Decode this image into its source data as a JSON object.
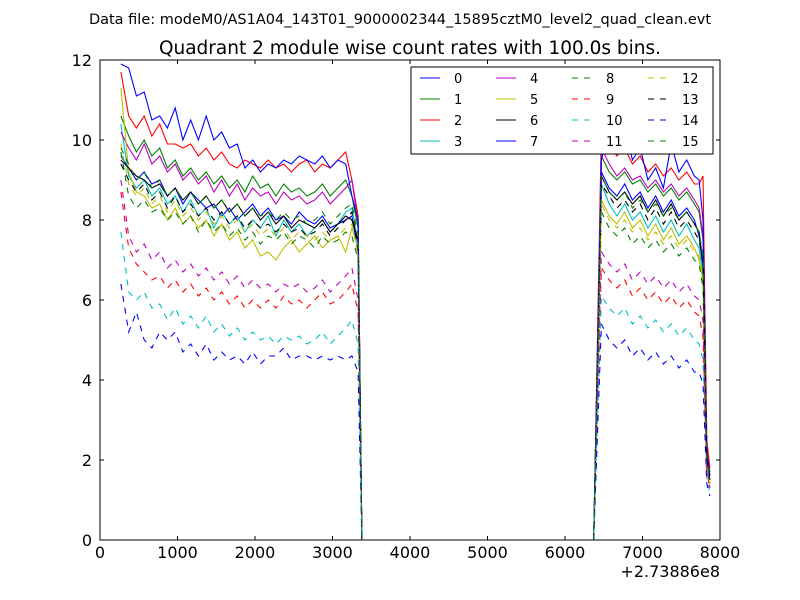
{
  "suptitle": "Data file: modeM0/AS1A04_143T01_9000002344_15895cztM0_level2_quad_clean.evt",
  "chart_data": {
    "type": "line",
    "title": "Quadrant 2 module wise count rates with 100.0s bins.",
    "xlabel": "",
    "ylabel": "",
    "x_offset_label": "+2.73886e8",
    "xlim": [
      0,
      8000
    ],
    "ylim": [
      0,
      12
    ],
    "x_ticks": [
      0,
      1000,
      2000,
      3000,
      4000,
      5000,
      6000,
      7000,
      8000
    ],
    "x_tick_labels": [
      "0",
      "1000",
      "2000",
      "3000",
      "4000",
      "5000",
      "6000",
      "7000",
      "8000"
    ],
    "y_ticks": [
      0,
      2,
      4,
      6,
      8,
      10,
      12
    ],
    "y_tick_labels": [
      "0",
      "2",
      "4",
      "6",
      "8",
      "10",
      "12"
    ],
    "grid": false,
    "legend_position": "upper-right",
    "legend_columns": 4,
    "x": [
      270,
      370,
      470,
      570,
      670,
      770,
      870,
      970,
      1070,
      1170,
      1270,
      1370,
      1470,
      1570,
      1670,
      1770,
      1870,
      1970,
      2070,
      2170,
      2270,
      2370,
      2470,
      2570,
      2670,
      2770,
      2870,
      2970,
      3070,
      3170,
      3250,
      3330,
      3380,
      6370,
      6470,
      6570,
      6670,
      6770,
      6870,
      6970,
      7070,
      7170,
      7270,
      7370,
      7470,
      7570,
      7670,
      7730,
      7780,
      7830,
      7870
    ],
    "series": [
      {
        "name": "0",
        "color": "#0000ff",
        "dash": "solid",
        "values": [
          9.6,
          9.3,
          9.0,
          9.2,
          8.9,
          9.0,
          8.6,
          8.8,
          8.4,
          8.7,
          8.5,
          8.3,
          8.4,
          8.1,
          8.3,
          8.0,
          8.2,
          8.4,
          8.1,
          8.3,
          8.0,
          8.1,
          7.9,
          8.2,
          8.0,
          7.9,
          8.1,
          7.8,
          7.9,
          8.0,
          8.1,
          7.2,
          0.0,
          0.0,
          9.2,
          8.8,
          8.6,
          8.9,
          8.5,
          8.7,
          8.3,
          8.6,
          8.2,
          8.5,
          8.1,
          8.3,
          8.0,
          7.6,
          6.8,
          2.0,
          1.6
        ]
      },
      {
        "name": "1",
        "color": "#008000",
        "dash": "solid",
        "values": [
          10.6,
          10.1,
          9.7,
          10.0,
          9.6,
          9.8,
          9.3,
          9.5,
          9.1,
          9.3,
          9.0,
          9.2,
          8.9,
          9.1,
          8.8,
          9.0,
          8.7,
          9.1,
          8.8,
          8.9,
          8.6,
          8.9,
          8.7,
          8.8,
          8.6,
          8.7,
          8.9,
          8.6,
          8.8,
          9.0,
          8.6,
          7.8,
          0.0,
          0.0,
          9.6,
          9.2,
          9.0,
          9.2,
          8.9,
          9.0,
          8.7,
          8.9,
          8.6,
          8.8,
          8.5,
          8.7,
          8.4,
          8.2,
          7.5,
          2.3,
          1.7
        ]
      },
      {
        "name": "2",
        "color": "#ff0000",
        "dash": "solid",
        "values": [
          11.7,
          10.6,
          10.3,
          10.6,
          10.1,
          10.4,
          9.9,
          9.9,
          9.8,
          9.9,
          9.6,
          9.8,
          9.5,
          9.7,
          9.4,
          9.3,
          9.5,
          9.4,
          9.3,
          9.5,
          9.3,
          9.4,
          9.2,
          9.4,
          9.5,
          9.2,
          9.4,
          9.3,
          9.5,
          9.7,
          9.0,
          8.1,
          0.0,
          0.0,
          10.3,
          9.9,
          9.6,
          9.8,
          9.4,
          9.6,
          9.2,
          9.4,
          9.1,
          9.3,
          9.0,
          9.2,
          8.9,
          8.9,
          9.1,
          2.5,
          1.8
        ]
      },
      {
        "name": "3",
        "color": "#00bfbf",
        "dash": "solid",
        "values": [
          10.4,
          9.1,
          8.8,
          9.0,
          8.6,
          8.8,
          8.4,
          8.6,
          8.2,
          8.5,
          8.1,
          8.3,
          7.8,
          8.2,
          7.9,
          8.1,
          7.7,
          8.0,
          7.8,
          8.1,
          7.6,
          8.0,
          7.7,
          7.9,
          7.6,
          7.8,
          8.0,
          7.7,
          7.9,
          8.2,
          8.3,
          7.4,
          0.0,
          0.0,
          8.9,
          8.4,
          8.1,
          8.4,
          8.0,
          8.2,
          7.8,
          8.1,
          7.7,
          8.0,
          7.6,
          7.9,
          7.5,
          7.3,
          6.6,
          2.1,
          1.5
        ]
      },
      {
        "name": "4",
        "color": "#bf00bf",
        "dash": "solid",
        "values": [
          10.2,
          9.8,
          9.5,
          9.9,
          9.4,
          9.6,
          9.2,
          9.4,
          9.0,
          9.2,
          8.9,
          9.1,
          8.7,
          9.0,
          8.6,
          8.9,
          8.5,
          8.8,
          8.6,
          8.7,
          8.4,
          8.7,
          8.5,
          8.6,
          8.4,
          8.5,
          8.7,
          8.4,
          8.6,
          8.8,
          9.0,
          7.9,
          0.0,
          0.0,
          9.8,
          9.4,
          9.1,
          9.3,
          9.0,
          9.1,
          8.8,
          9.0,
          8.7,
          8.9,
          8.6,
          8.8,
          8.5,
          8.3,
          7.6,
          2.2,
          1.6
        ]
      },
      {
        "name": "5",
        "color": "#bfbf00",
        "dash": "solid",
        "values": [
          11.3,
          9.2,
          8.7,
          8.6,
          8.3,
          8.4,
          8.0,
          8.3,
          7.9,
          8.1,
          7.8,
          8.0,
          7.6,
          7.9,
          7.5,
          7.7,
          7.3,
          7.5,
          7.1,
          7.2,
          7.0,
          7.3,
          7.5,
          7.2,
          7.4,
          7.6,
          7.3,
          7.5,
          7.6,
          7.2,
          7.8,
          7.3,
          0.0,
          0.0,
          8.5,
          8.1,
          7.9,
          8.2,
          7.8,
          8.0,
          7.6,
          7.9,
          7.5,
          7.8,
          7.4,
          7.6,
          7.3,
          7.0,
          6.5,
          2.0,
          1.5
        ]
      },
      {
        "name": "6",
        "color": "#000000",
        "dash": "solid",
        "values": [
          9.5,
          9.3,
          9.1,
          9.0,
          8.8,
          8.9,
          8.6,
          8.8,
          8.5,
          8.7,
          8.4,
          8.6,
          8.3,
          8.5,
          8.2,
          8.4,
          8.1,
          8.3,
          8.0,
          8.2,
          7.9,
          8.1,
          7.8,
          8.0,
          7.9,
          7.8,
          8.0,
          7.7,
          7.9,
          8.1,
          8.0,
          7.5,
          0.0,
          0.0,
          9.1,
          8.7,
          8.5,
          8.7,
          8.4,
          8.6,
          8.2,
          8.5,
          8.1,
          8.4,
          8.0,
          8.2,
          7.9,
          7.7,
          6.9,
          2.0,
          1.5
        ]
      },
      {
        "name": "7",
        "color": "#0000ff",
        "dash": "solid",
        "values": [
          11.9,
          11.8,
          11.1,
          11.2,
          10.5,
          10.6,
          10.3,
          10.8,
          10.0,
          10.5,
          10.0,
          10.6,
          10.0,
          10.2,
          9.8,
          9.9,
          9.3,
          9.5,
          9.2,
          9.4,
          9.3,
          9.5,
          9.4,
          9.6,
          9.5,
          9.4,
          9.6,
          9.3,
          9.5,
          9.4,
          8.6,
          8.0,
          0.0,
          0.0,
          9.5,
          10.3,
          10.4,
          10.4,
          9.5,
          9.8,
          9.0,
          9.3,
          8.8,
          9.9,
          9.2,
          9.5,
          9.1,
          9.0,
          8.0,
          2.2,
          1.6
        ]
      },
      {
        "name": "8",
        "color": "#008000",
        "dash": "dashed",
        "values": [
          9.7,
          8.6,
          8.3,
          8.5,
          8.2,
          8.3,
          8.0,
          8.2,
          7.9,
          8.1,
          7.7,
          8.0,
          7.7,
          7.9,
          7.6,
          7.8,
          7.5,
          7.7,
          7.4,
          7.6,
          7.5,
          7.7,
          7.4,
          7.6,
          7.5,
          7.3,
          7.6,
          7.4,
          7.5,
          7.7,
          7.6,
          7.0,
          0.0,
          0.0,
          8.2,
          7.8,
          7.6,
          7.8,
          7.4,
          7.6,
          7.3,
          7.5,
          7.2,
          7.4,
          7.1,
          7.3,
          7.0,
          6.9,
          6.3,
          1.9,
          1.4
        ]
      },
      {
        "name": "9",
        "color": "#ff0000",
        "dash": "dashed",
        "values": [
          8.7,
          7.3,
          6.9,
          6.7,
          6.5,
          6.6,
          6.3,
          6.5,
          6.2,
          6.4,
          6.1,
          6.3,
          6.0,
          6.2,
          5.9,
          6.1,
          5.8,
          6.0,
          5.8,
          6.0,
          5.8,
          6.1,
          5.9,
          6.0,
          5.8,
          6.0,
          6.2,
          5.9,
          6.0,
          6.2,
          6.4,
          5.7,
          0.0,
          0.0,
          6.8,
          6.5,
          6.3,
          6.5,
          6.1,
          6.3,
          6.0,
          6.2,
          5.9,
          6.1,
          5.8,
          6.0,
          5.7,
          5.6,
          5.1,
          1.7,
          1.3
        ]
      },
      {
        "name": "10",
        "color": "#00bfbf",
        "dash": "dashed",
        "values": [
          7.7,
          6.2,
          6.0,
          6.2,
          5.8,
          5.9,
          5.5,
          5.8,
          5.4,
          5.6,
          5.3,
          5.6,
          5.2,
          5.4,
          5.1,
          5.3,
          5.0,
          5.2,
          5.0,
          5.1,
          4.9,
          5.1,
          5.0,
          5.1,
          4.9,
          5.0,
          5.2,
          4.9,
          5.1,
          5.3,
          5.5,
          4.9,
          0.0,
          0.0,
          6.1,
          5.8,
          5.6,
          5.8,
          5.4,
          5.6,
          5.3,
          5.5,
          5.2,
          5.4,
          5.1,
          5.3,
          5.0,
          4.9,
          4.5,
          1.5,
          1.2
        ]
      },
      {
        "name": "11",
        "color": "#bf00bf",
        "dash": "dashed",
        "values": [
          9.0,
          7.6,
          7.2,
          7.4,
          7.0,
          7.2,
          6.8,
          7.0,
          6.7,
          6.9,
          6.6,
          6.8,
          6.5,
          6.7,
          6.4,
          6.6,
          6.3,
          6.5,
          6.3,
          6.4,
          6.2,
          6.4,
          6.3,
          6.4,
          6.2,
          6.3,
          6.5,
          6.2,
          6.4,
          6.6,
          6.8,
          6.0,
          0.0,
          0.0,
          7.2,
          6.9,
          6.7,
          6.9,
          6.5,
          6.7,
          6.4,
          6.6,
          6.3,
          6.5,
          6.2,
          6.4,
          6.1,
          6.0,
          5.5,
          1.8,
          1.3
        ]
      },
      {
        "name": "12",
        "color": "#bfbf00",
        "dash": "dashed",
        "values": [
          9.9,
          8.9,
          8.6,
          8.8,
          8.4,
          8.6,
          8.2,
          8.5,
          8.1,
          8.3,
          8.0,
          8.2,
          7.9,
          8.1,
          7.8,
          8.0,
          7.7,
          7.9,
          7.6,
          7.8,
          7.6,
          7.8,
          7.5,
          7.7,
          7.6,
          7.5,
          7.7,
          7.5,
          7.6,
          7.8,
          7.9,
          7.1,
          0.0,
          0.0,
          8.4,
          8.0,
          7.8,
          8.0,
          7.7,
          7.8,
          7.5,
          7.7,
          7.4,
          7.6,
          7.3,
          7.5,
          7.2,
          7.1,
          6.6,
          2.0,
          1.4
        ]
      },
      {
        "name": "13",
        "color": "#000000",
        "dash": "dashed",
        "values": [
          9.4,
          9.0,
          8.7,
          8.9,
          8.5,
          8.7,
          8.3,
          8.6,
          8.2,
          8.4,
          8.1,
          8.3,
          8.0,
          8.2,
          7.9,
          8.1,
          7.8,
          8.0,
          7.8,
          7.9,
          7.7,
          7.9,
          7.7,
          7.8,
          7.6,
          7.7,
          7.9,
          7.6,
          7.8,
          8.0,
          8.2,
          7.3,
          0.0,
          0.0,
          8.9,
          8.6,
          8.3,
          8.5,
          8.2,
          8.4,
          8.0,
          8.3,
          7.9,
          8.2,
          7.8,
          8.0,
          7.7,
          7.5,
          6.9,
          2.1,
          1.5
        ]
      },
      {
        "name": "14",
        "color": "#0000ff",
        "dash": "dashed",
        "values": [
          6.4,
          5.2,
          5.7,
          5.0,
          4.8,
          5.2,
          5.0,
          5.2,
          4.7,
          4.9,
          4.6,
          4.9,
          4.5,
          4.7,
          4.5,
          4.6,
          4.4,
          4.7,
          4.4,
          4.6,
          4.6,
          4.8,
          4.5,
          4.6,
          4.6,
          4.5,
          4.6,
          4.5,
          4.6,
          4.5,
          4.6,
          4.2,
          0.0,
          0.0,
          5.4,
          5.0,
          4.8,
          5.0,
          4.6,
          4.8,
          4.5,
          4.7,
          4.4,
          4.6,
          4.3,
          4.5,
          4.2,
          4.2,
          3.9,
          1.4,
          1.1
        ]
      },
      {
        "name": "15",
        "color": "#008000",
        "dash": "dashed",
        "values": [
          9.8,
          9.4,
          9.0,
          9.2,
          8.8,
          9.0,
          8.6,
          8.8,
          8.5,
          8.7,
          8.4,
          8.6,
          8.3,
          8.5,
          8.2,
          8.4,
          8.1,
          8.3,
          8.1,
          8.2,
          8.0,
          8.2,
          8.0,
          8.1,
          7.9,
          8.0,
          8.2,
          7.9,
          8.1,
          8.3,
          8.4,
          7.6,
          0.0,
          0.0,
          9.1,
          8.7,
          8.5,
          8.7,
          8.3,
          8.5,
          8.2,
          8.4,
          8.1,
          8.3,
          8.0,
          8.2,
          7.9,
          7.7,
          7.1,
          2.1,
          1.5
        ]
      }
    ]
  }
}
